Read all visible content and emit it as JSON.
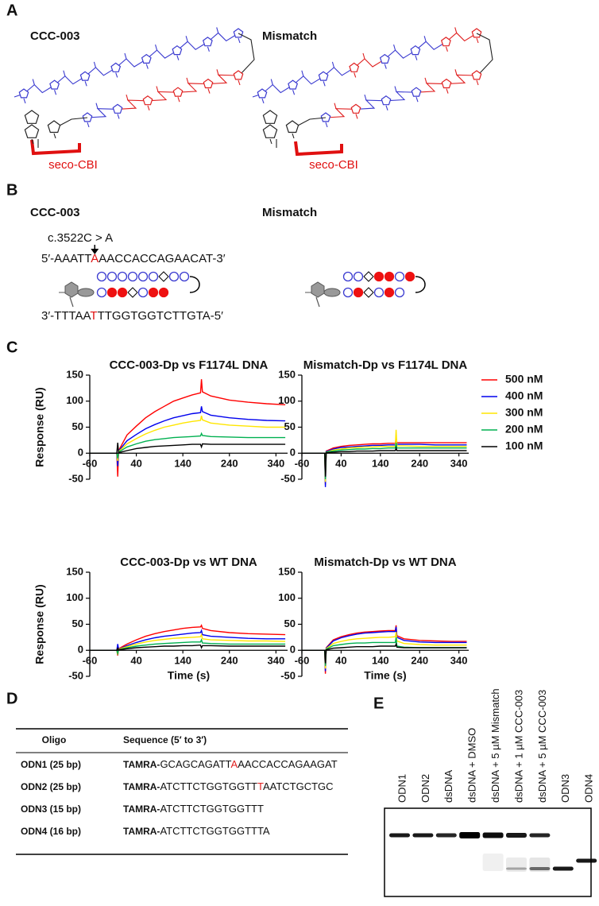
{
  "panel_labels": [
    "A",
    "B",
    "C",
    "D",
    "E"
  ],
  "panel_a": {
    "left_title": "CCC-003",
    "right_title": "Mismatch",
    "left_label": "seco-CBI",
    "right_label": "seco-CBI"
  },
  "panel_b": {
    "left_title": "CCC-003",
    "right_title": "Mismatch",
    "mutation": "c.3522C > A",
    "top_strand": [
      "5′-AAATT",
      "A",
      "AACCACCAGAACAT-3′"
    ],
    "bottom_strand": [
      "3′-TTTAA",
      "T",
      "TTGGTGGTCTTGTA-5′"
    ]
  },
  "chart_data": [
    {
      "type": "line",
      "title": "CCC-003-Dp vs F1174L DNA",
      "ylabel": "Response (RU)",
      "x": [
        -60,
        -20,
        -2,
        0,
        2,
        20,
        40,
        60,
        80,
        100,
        120,
        140,
        160,
        178,
        180,
        182,
        200,
        240,
        280,
        320,
        360
      ],
      "xlim": [
        -60,
        365
      ],
      "ylim": [
        -50,
        150
      ],
      "xticks": [
        -60,
        40,
        140,
        240,
        340
      ],
      "yticks": [
        -50,
        0,
        50,
        100,
        150
      ],
      "series": [
        {
          "color": "#ff0000",
          "values": [
            0,
            0,
            0,
            -45,
            5,
            35,
            52,
            68,
            80,
            90,
            100,
            106,
            112,
            116,
            142,
            118,
            110,
            102,
            98,
            95,
            93
          ]
        },
        {
          "color": "#0000ee",
          "values": [
            0,
            0,
            0,
            -25,
            4,
            24,
            36,
            47,
            55,
            62,
            68,
            72,
            76,
            78,
            90,
            80,
            73,
            68,
            65,
            63,
            62
          ]
        },
        {
          "color": "#ffe600",
          "values": [
            0,
            0,
            0,
            -15,
            3,
            18,
            28,
            37,
            44,
            50,
            54,
            58,
            61,
            63,
            72,
            64,
            58,
            54,
            52,
            50,
            50
          ]
        },
        {
          "color": "#00b050",
          "values": [
            0,
            0,
            0,
            -10,
            2,
            12,
            18,
            23,
            26,
            28,
            30,
            31,
            32,
            33,
            38,
            34,
            32,
            31,
            30,
            30,
            30
          ]
        },
        {
          "color": "#000000",
          "values": [
            0,
            0,
            0,
            20,
            1,
            5,
            9,
            11,
            13,
            14,
            15,
            16,
            17,
            17,
            12,
            18,
            17,
            17,
            17,
            17,
            17
          ]
        }
      ]
    },
    {
      "type": "line",
      "title": "Mismatch-Dp vs F1174L DNA",
      "legend": "right",
      "x": [
        -60,
        -20,
        -2,
        0,
        2,
        20,
        40,
        60,
        80,
        100,
        120,
        140,
        160,
        178,
        180,
        182,
        200,
        240,
        280,
        320,
        360
      ],
      "xlim": [
        -60,
        365
      ],
      "ylim": [
        -50,
        150
      ],
      "xticks": [
        -60,
        40,
        140,
        240,
        340
      ],
      "yticks": [
        -50,
        0,
        50,
        100,
        150
      ],
      "series": [
        {
          "name": "500 nM",
          "color": "#ff0000",
          "values": [
            0,
            0,
            0,
            -60,
            4,
            10,
            13,
            15,
            16,
            17,
            18,
            18,
            19,
            19,
            30,
            20,
            20,
            20,
            20,
            20,
            20
          ]
        },
        {
          "name": "400 nM",
          "color": "#0000ee",
          "values": [
            0,
            0,
            0,
            -65,
            3,
            8,
            11,
            12,
            13,
            14,
            15,
            15,
            16,
            16,
            25,
            17,
            17,
            17,
            16,
            16,
            16
          ]
        },
        {
          "name": "300 nM",
          "color": "#ffe600",
          "values": [
            0,
            0,
            0,
            -55,
            2,
            6,
            8,
            10,
            11,
            12,
            12,
            13,
            13,
            13,
            45,
            14,
            14,
            13,
            13,
            13,
            13
          ]
        },
        {
          "name": "200 nM",
          "color": "#00b050",
          "values": [
            0,
            0,
            0,
            -50,
            2,
            4,
            6,
            7,
            8,
            8,
            9,
            9,
            10,
            10,
            20,
            10,
            10,
            10,
            10,
            10,
            10
          ]
        },
        {
          "name": "100 nM",
          "color": "#000000",
          "values": [
            0,
            0,
            0,
            -45,
            1,
            2,
            3,
            3,
            4,
            4,
            4,
            5,
            5,
            5,
            10,
            5,
            5,
            5,
            5,
            5,
            5
          ]
        }
      ]
    },
    {
      "type": "line",
      "title": "CCC-003-Dp vs WT DNA",
      "ylabel": "Response (RU)",
      "xlabel": "Time (s)",
      "x": [
        -60,
        -20,
        -2,
        0,
        2,
        20,
        40,
        60,
        80,
        100,
        120,
        140,
        160,
        178,
        180,
        182,
        200,
        240,
        280,
        320,
        360
      ],
      "xlim": [
        -60,
        365
      ],
      "ylim": [
        -50,
        150
      ],
      "xticks": [
        -60,
        40,
        140,
        240,
        340
      ],
      "yticks": [
        -50,
        0,
        50,
        100,
        150
      ],
      "series": [
        {
          "color": "#ff0000",
          "values": [
            0,
            0,
            0,
            -10,
            3,
            12,
            20,
            27,
            32,
            36,
            39,
            42,
            44,
            45,
            48,
            42,
            38,
            34,
            32,
            31,
            30
          ]
        },
        {
          "color": "#0000ee",
          "values": [
            0,
            0,
            0,
            12,
            2,
            9,
            15,
            20,
            24,
            27,
            29,
            31,
            33,
            34,
            38,
            30,
            27,
            25,
            23,
            22,
            22
          ]
        },
        {
          "color": "#ffe600",
          "values": [
            0,
            0,
            0,
            -8,
            2,
            7,
            12,
            16,
            19,
            21,
            23,
            24,
            25,
            26,
            30,
            22,
            20,
            19,
            18,
            18,
            17
          ]
        },
        {
          "color": "#00b050",
          "values": [
            0,
            0,
            0,
            -6,
            1,
            5,
            8,
            10,
            12,
            13,
            14,
            15,
            16,
            16,
            20,
            14,
            13,
            12,
            12,
            12,
            12
          ]
        },
        {
          "color": "#000000",
          "values": [
            0,
            0,
            0,
            4,
            1,
            3,
            5,
            6,
            7,
            8,
            8,
            9,
            9,
            10,
            5,
            9,
            9,
            8,
            8,
            8,
            8
          ]
        }
      ]
    },
    {
      "type": "line",
      "title": "Mismatch-Dp vs WT DNA",
      "xlabel": "Time (s)",
      "x": [
        -60,
        -20,
        -2,
        0,
        2,
        20,
        40,
        60,
        80,
        100,
        120,
        140,
        160,
        178,
        180,
        182,
        200,
        240,
        280,
        320,
        360
      ],
      "xlim": [
        -60,
        365
      ],
      "ylim": [
        -50,
        150
      ],
      "xticks": [
        -60,
        40,
        140,
        240,
        340
      ],
      "yticks": [
        -50,
        0,
        50,
        100,
        150
      ],
      "series": [
        {
          "color": "#ff0000",
          "values": [
            0,
            0,
            0,
            -45,
            5,
            20,
            26,
            30,
            33,
            35,
            36,
            37,
            38,
            38,
            48,
            28,
            22,
            19,
            18,
            17,
            17
          ]
        },
        {
          "color": "#0000ee",
          "values": [
            0,
            0,
            0,
            -40,
            4,
            18,
            24,
            28,
            31,
            33,
            34,
            35,
            36,
            36,
            45,
            25,
            19,
            16,
            15,
            15,
            15
          ]
        },
        {
          "color": "#ffe600",
          "values": [
            0,
            0,
            0,
            -35,
            3,
            13,
            17,
            20,
            22,
            23,
            24,
            25,
            25,
            26,
            35,
            18,
            13,
            11,
            10,
            10,
            10
          ]
        },
        {
          "color": "#00b050",
          "values": [
            0,
            0,
            0,
            -30,
            2,
            9,
            11,
            13,
            14,
            14,
            15,
            15,
            15,
            15,
            25,
            8,
            6,
            5,
            5,
            5,
            5
          ]
        },
        {
          "color": "#000000",
          "values": [
            0,
            0,
            0,
            -25,
            1,
            4,
            5,
            6,
            7,
            7,
            7,
            8,
            8,
            8,
            12,
            6,
            5,
            5,
            5,
            5,
            5
          ]
        }
      ]
    }
  ],
  "table": {
    "header": [
      "Oligo",
      "Sequence (5′ to 3′)"
    ],
    "rows": [
      [
        "ODN1 (25 bp)",
        [
          "TAMRA-",
          "GCAGCAGATT",
          "A",
          "AACCACCAGAAGAT"
        ]
      ],
      [
        "ODN2 (25 bp)",
        [
          "TAMRA-",
          "ATCTTCTGGTGGTT",
          "T",
          "AATCTGCTGC"
        ]
      ],
      [
        "ODN3 (15 bp)",
        [
          "TAMRA-",
          "ATCTTCTGGTGGTTT"
        ]
      ],
      [
        "ODN4 (16 bp)",
        [
          "TAMRA-",
          "ATCTTCTGGTGGTTTA"
        ]
      ]
    ]
  },
  "gel": {
    "lanes": [
      "ODN1",
      "ODN2",
      "dsDNA",
      "dsDNA + DMSO",
      "dsDNA + 5 µM Mismatch",
      "dsDNA + 1 µM CCC-003",
      "dsDNA + 5 µM CCC-003",
      "ODN3",
      "ODN4"
    ]
  }
}
